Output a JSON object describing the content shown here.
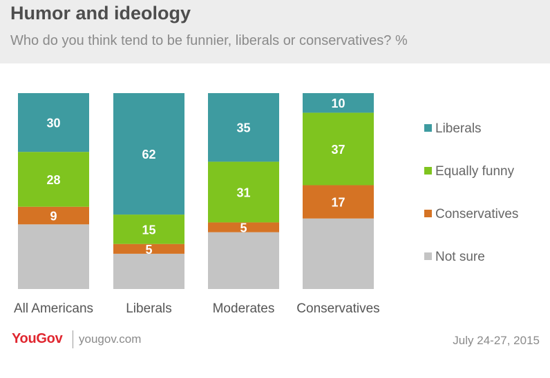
{
  "header": {
    "title": "Humor and ideology",
    "subtitle": "Who do you think tend to be funnier, liberals or conservatives? %"
  },
  "footer": {
    "brand": "YouGov",
    "site": "yougov.com",
    "date": "July 24-27, 2015"
  },
  "chart_data": {
    "type": "bar",
    "stacked": true,
    "categories": [
      "All Americans",
      "Liberals",
      "Moderates",
      "Conservatives"
    ],
    "series": [
      {
        "name": "Liberals",
        "color": "#3e9ba0",
        "values": [
          30,
          62,
          35,
          10
        ]
      },
      {
        "name": "Equally funny",
        "color": "#7fc41f",
        "values": [
          28,
          15,
          31,
          37
        ]
      },
      {
        "name": "Conservatives",
        "color": "#d57324",
        "values": [
          9,
          5,
          5,
          17
        ]
      },
      {
        "name": "Not sure",
        "color": "#c4c4c4",
        "values": [
          33,
          18,
          29,
          36
        ]
      }
    ],
    "labeled_series": [
      "Liberals",
      "Equally funny",
      "Conservatives"
    ],
    "ylim": [
      0,
      100
    ],
    "legend_position": "right",
    "grid": false
  }
}
